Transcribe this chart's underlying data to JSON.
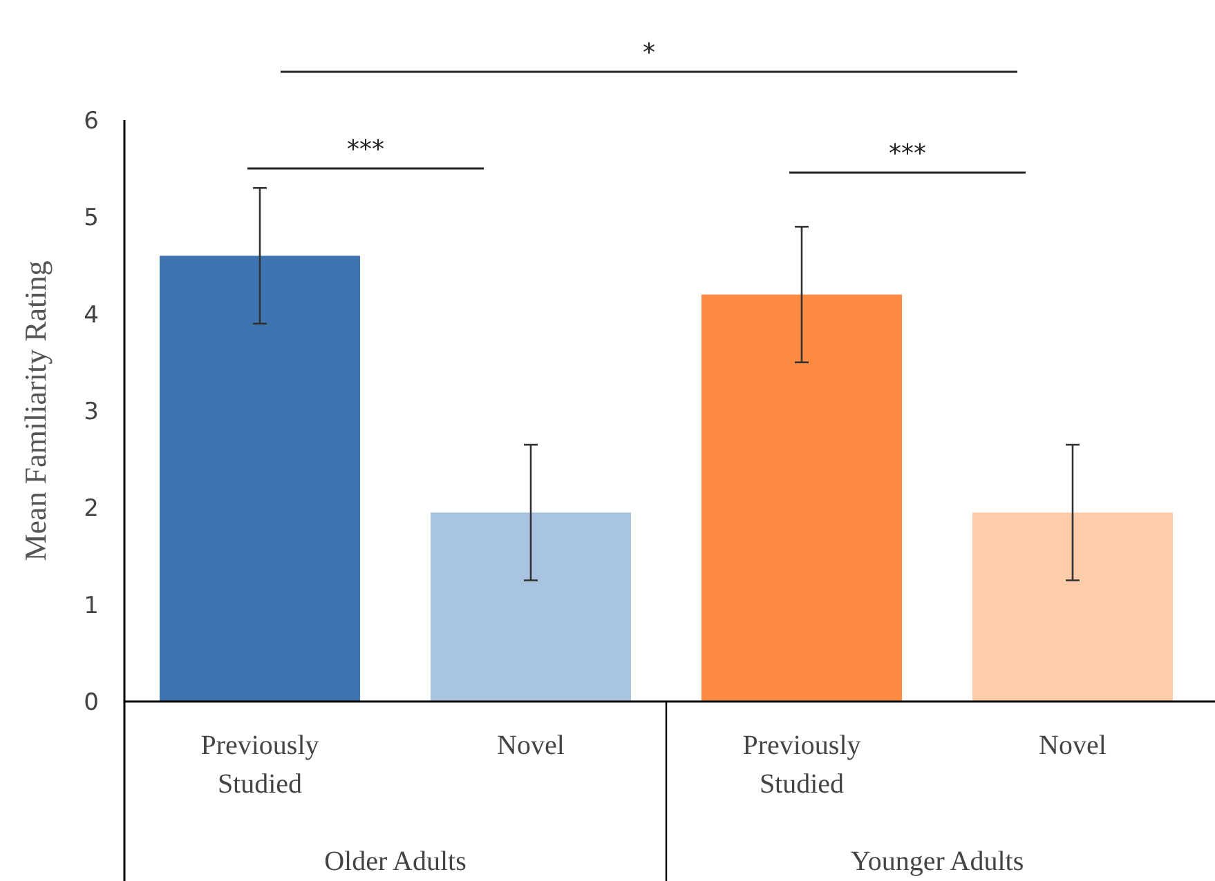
{
  "chart_data": {
    "type": "bar",
    "ylabel": "Mean Familiarity Rating",
    "categories": [
      "Previously Studied",
      "Novel",
      "Previously Studied",
      "Novel"
    ],
    "values": [
      4.6,
      1.95,
      4.2,
      1.95
    ],
    "colors": [
      "#3d74b1",
      "#a9c4e1",
      "#fd8a42",
      "#fdcca9"
    ],
    "errors": [
      0.7,
      0.7,
      0.7,
      0.7
    ],
    "ylim": [
      0,
      6
    ],
    "yticks": [
      0,
      1,
      2,
      3,
      4,
      5,
      6
    ],
    "grid": false,
    "annotations": [
      "Older Adults",
      "Younger Adults",
      "***",
      "***",
      "*"
    ]
  }
}
